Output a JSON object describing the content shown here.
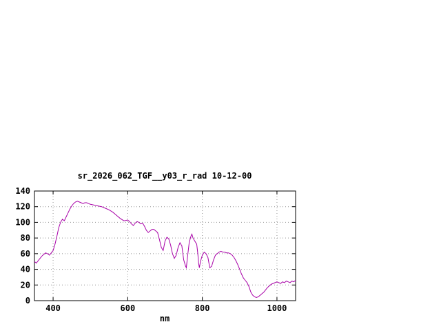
{
  "chart_data": {
    "type": "line",
    "title": "sr_2026_062_TGF__y03_r_rad 10-12-00",
    "xlabel": "nm",
    "ylabel": "",
    "xlim": [
      350,
      1050
    ],
    "ylim": [
      0,
      140
    ],
    "xticks": [
      400,
      600,
      800,
      1000
    ],
    "yticks": [
      0,
      20,
      40,
      60,
      80,
      100,
      120,
      140
    ],
    "grid": true,
    "legend_position": "none",
    "line_color": "#a800a8",
    "grid_color": "#909090",
    "border_color": "#000000",
    "series": [
      {
        "name": "sr_2026_062_TGF__y03_r_rad",
        "points": [
          [
            350,
            50
          ],
          [
            355,
            48
          ],
          [
            360,
            51
          ],
          [
            365,
            54
          ],
          [
            370,
            57
          ],
          [
            375,
            59
          ],
          [
            380,
            61
          ],
          [
            385,
            60
          ],
          [
            390,
            58
          ],
          [
            395,
            61
          ],
          [
            400,
            64
          ],
          [
            405,
            72
          ],
          [
            410,
            82
          ],
          [
            415,
            93
          ],
          [
            420,
            100
          ],
          [
            425,
            104
          ],
          [
            430,
            102
          ],
          [
            435,
            107
          ],
          [
            440,
            112
          ],
          [
            445,
            117
          ],
          [
            450,
            121
          ],
          [
            455,
            124
          ],
          [
            460,
            126
          ],
          [
            465,
            127
          ],
          [
            470,
            126
          ],
          [
            475,
            125
          ],
          [
            480,
            124
          ],
          [
            485,
            125
          ],
          [
            490,
            125
          ],
          [
            495,
            124
          ],
          [
            500,
            123
          ],
          [
            510,
            122
          ],
          [
            520,
            121
          ],
          [
            530,
            120
          ],
          [
            540,
            118
          ],
          [
            550,
            116
          ],
          [
            560,
            113
          ],
          [
            570,
            109
          ],
          [
            580,
            105
          ],
          [
            590,
            102
          ],
          [
            600,
            103
          ],
          [
            605,
            101
          ],
          [
            610,
            98
          ],
          [
            615,
            96
          ],
          [
            620,
            99
          ],
          [
            625,
            101
          ],
          [
            630,
            100
          ],
          [
            635,
            98
          ],
          [
            640,
            99
          ],
          [
            645,
            95
          ],
          [
            650,
            90
          ],
          [
            655,
            87
          ],
          [
            660,
            89
          ],
          [
            665,
            91
          ],
          [
            670,
            91
          ],
          [
            675,
            89
          ],
          [
            680,
            87
          ],
          [
            685,
            78
          ],
          [
            690,
            68
          ],
          [
            695,
            64
          ],
          [
            700,
            76
          ],
          [
            705,
            81
          ],
          [
            710,
            79
          ],
          [
            715,
            71
          ],
          [
            720,
            60
          ],
          [
            725,
            54
          ],
          [
            730,
            58
          ],
          [
            735,
            68
          ],
          [
            740,
            74
          ],
          [
            745,
            70
          ],
          [
            750,
            52
          ],
          [
            755,
            44
          ],
          [
            757,
            42
          ],
          [
            760,
            55
          ],
          [
            765,
            75
          ],
          [
            770,
            83
          ],
          [
            772,
            85
          ],
          [
            775,
            80
          ],
          [
            780,
            76
          ],
          [
            785,
            72
          ],
          [
            788,
            60
          ],
          [
            790,
            48
          ],
          [
            792,
            42
          ],
          [
            795,
            50
          ],
          [
            800,
            58
          ],
          [
            805,
            62
          ],
          [
            810,
            60
          ],
          [
            815,
            55
          ],
          [
            818,
            47
          ],
          [
            820,
            42
          ],
          [
            825,
            44
          ],
          [
            830,
            52
          ],
          [
            835,
            58
          ],
          [
            840,
            60
          ],
          [
            845,
            62
          ],
          [
            850,
            63
          ],
          [
            855,
            62
          ],
          [
            860,
            62
          ],
          [
            865,
            61
          ],
          [
            870,
            61
          ],
          [
            875,
            60
          ],
          [
            880,
            58
          ],
          [
            885,
            55
          ],
          [
            890,
            51
          ],
          [
            895,
            46
          ],
          [
            900,
            40
          ],
          [
            905,
            34
          ],
          [
            910,
            29
          ],
          [
            915,
            26
          ],
          [
            920,
            23
          ],
          [
            925,
            18
          ],
          [
            930,
            11
          ],
          [
            935,
            7
          ],
          [
            940,
            5
          ],
          [
            945,
            4
          ],
          [
            950,
            5
          ],
          [
            955,
            7
          ],
          [
            960,
            9
          ],
          [
            965,
            11
          ],
          [
            970,
            14
          ],
          [
            975,
            17
          ],
          [
            980,
            19
          ],
          [
            985,
            21
          ],
          [
            990,
            22
          ],
          [
            995,
            23
          ],
          [
            1000,
            24
          ],
          [
            1005,
            23
          ],
          [
            1010,
            22
          ],
          [
            1015,
            24
          ],
          [
            1020,
            23
          ],
          [
            1025,
            25
          ],
          [
            1030,
            24
          ],
          [
            1035,
            23
          ],
          [
            1040,
            25
          ],
          [
            1045,
            24
          ],
          [
            1050,
            26
          ]
        ]
      }
    ]
  }
}
